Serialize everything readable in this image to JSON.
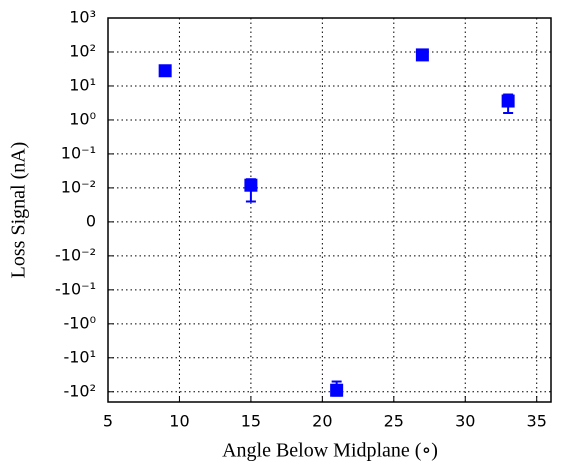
{
  "chart_data": {
    "type": "scatter",
    "xlabel": "Angle Below Midplane (∘)",
    "ylabel": "Loss Signal (nA)",
    "yscale": "symlog",
    "linthresh": 0.01,
    "xlim": [
      5,
      36
    ],
    "xticks": [
      5,
      10,
      15,
      20,
      25,
      30,
      35
    ],
    "ylim": [
      -200,
      1000
    ],
    "yticks": [
      {
        "value": 1000,
        "label": "10³"
      },
      {
        "value": 100,
        "label": "10²"
      },
      {
        "value": 10,
        "label": "10¹"
      },
      {
        "value": 1,
        "label": "10⁰"
      },
      {
        "value": 0.1,
        "label": "10⁻¹"
      },
      {
        "value": 0.01,
        "label": "10⁻²"
      },
      0,
      {
        "value": -0.01,
        "label": "-10⁻²"
      },
      {
        "value": -0.1,
        "label": "-10⁻¹"
      },
      {
        "value": -1,
        "label": "-10⁰"
      },
      {
        "value": -10,
        "label": "-10¹"
      },
      {
        "value": -100,
        "label": "-10²"
      }
    ],
    "grid": true,
    "series": [
      {
        "color": "#0000ff",
        "x": [
          9,
          15,
          21,
          27,
          33
        ],
        "values": [
          28,
          0.012,
          -90,
          82,
          3.6
        ],
        "errors": [
          4,
          0.006,
          40,
          10,
          2
        ]
      }
    ]
  }
}
